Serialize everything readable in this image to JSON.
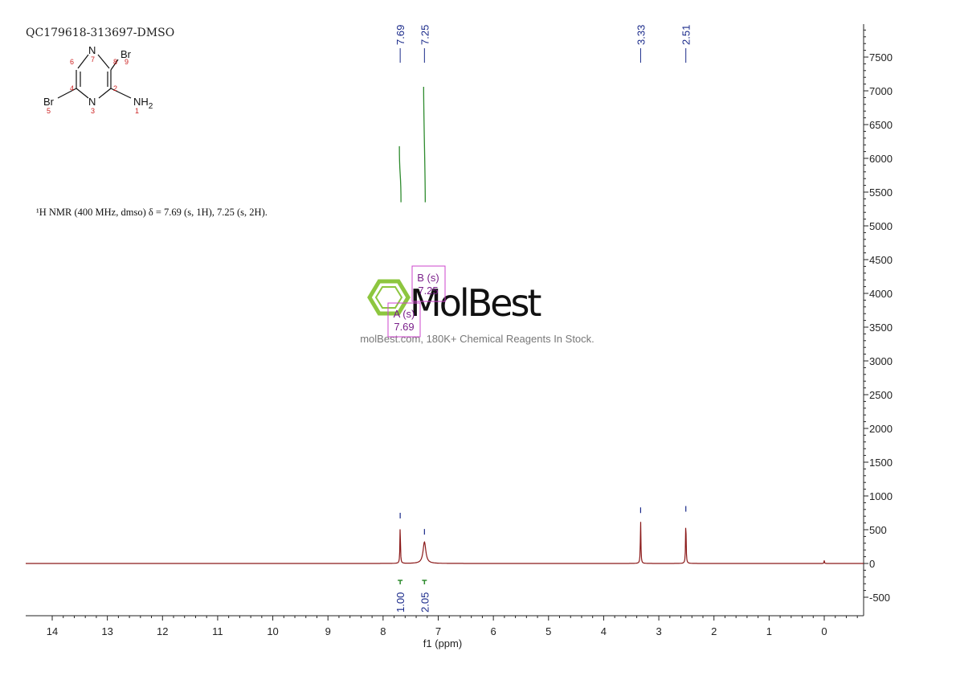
{
  "sample_id": "QC179618-313697-DMSO",
  "nmr_description": "¹H NMR (400 MHz, dmso) δ = 7.69 (s, 1H), 7.25 (s, 2H).",
  "molecule": {
    "atoms": [
      {
        "symbol": "N",
        "num": "7"
      },
      {
        "symbol": "Br",
        "num": "9"
      },
      {
        "symbol": "",
        "num": "6"
      },
      {
        "symbol": "",
        "num": "8"
      },
      {
        "symbol": "",
        "num": "4"
      },
      {
        "symbol": "",
        "num": "2"
      },
      {
        "symbol": "Br",
        "num": "5"
      },
      {
        "symbol": "N",
        "num": "3"
      },
      {
        "symbol": "NH",
        "sub": "2",
        "num": "1"
      }
    ]
  },
  "watermark": {
    "brand": "MolBest",
    "tagline": "molBest.com, 180K+ Chemical Reagents In Stock.",
    "color": "#8dc63f"
  },
  "colors": {
    "spectrum": "#8b1a1a",
    "integral": "#2e8b2e",
    "peak_label": "#1a2a8a",
    "multiplet_box": "#cc44cc"
  },
  "chart_data": {
    "type": "line",
    "title": "",
    "xlabel": "f1 (ppm)",
    "ylabel": "",
    "xlim": [
      14.5,
      -0.7
    ],
    "ylim": [
      -800,
      7900
    ],
    "x_reversed": true,
    "x_ticks": [
      14,
      13,
      12,
      11,
      10,
      9,
      8,
      7,
      6,
      5,
      4,
      3,
      2,
      1,
      0
    ],
    "y_ticks": [
      -500,
      0,
      500,
      1000,
      1500,
      2000,
      2500,
      3000,
      3500,
      4000,
      4500,
      5000,
      5500,
      6000,
      6500,
      7000,
      7500
    ],
    "y_axis_side": "right",
    "series": [
      {
        "peaks": [
          {
            "ppm": 7.69,
            "height": 560,
            "width": 0.012
          },
          {
            "ppm": 7.25,
            "height": 320,
            "width": 0.06
          },
          {
            "ppm": 3.33,
            "height": 640,
            "width": 0.012
          },
          {
            "ppm": 2.51,
            "height": 660,
            "width": 0.012
          },
          {
            "ppm": 0.0,
            "height": 45,
            "width": 0.01
          }
        ]
      }
    ],
    "peak_labels": [
      "7.69",
      "7.25",
      "3.33",
      "2.51"
    ],
    "peak_label_values": [
      7.69,
      7.25,
      3.33,
      2.51
    ],
    "integrals": [
      {
        "ppm": 7.69,
        "label": "1.00",
        "curve_top": 6180,
        "curve_bottom": 5350
      },
      {
        "ppm": 7.25,
        "label": "2.05",
        "curve_top": 7060,
        "curve_bottom": 5350
      }
    ],
    "multiplets": [
      {
        "name": "A (s)",
        "value": "7.69",
        "ppm": 7.69
      },
      {
        "name": "B (s)",
        "value": "7.25",
        "ppm": 7.25
      }
    ]
  }
}
